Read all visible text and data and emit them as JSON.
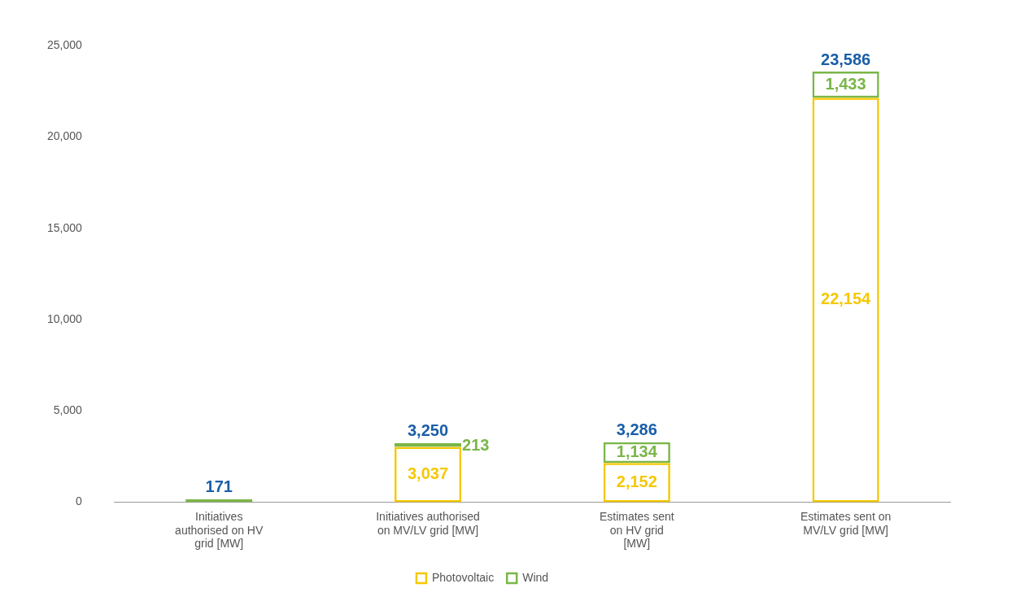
{
  "chart_data": {
    "type": "bar",
    "stacked": true,
    "categories": [
      "Initiatives\nauthorised on HV\ngrid [MW]",
      "Initiatives authorised\non MV/LV grid [MW]",
      "Estimates sent\non HV grid\n[MW]",
      "Estimates sent on\nMV/LV grid [MW]"
    ],
    "series": [
      {
        "name": "Photovoltaic",
        "color": "#f5c800",
        "values": [
          null,
          3037,
          2152,
          22154
        ],
        "value_labels": [
          null,
          "3,037",
          "2,152",
          "22,154"
        ]
      },
      {
        "name": "Wind",
        "color": "#7ab648",
        "values": [
          171,
          213,
          1134,
          1433
        ],
        "value_labels": [
          null,
          "213",
          "1,134",
          "1,433"
        ]
      }
    ],
    "totals": [
      "171",
      "3,250",
      "3,286",
      "23,586"
    ],
    "ylim": [
      0,
      25000
    ],
    "yticks": [
      {
        "value": 0,
        "label": "0"
      },
      {
        "value": 5000,
        "label": "5,000"
      },
      {
        "value": 10000,
        "label": "10,000"
      },
      {
        "value": 15000,
        "label": "15,000"
      },
      {
        "value": 20000,
        "label": "20,000"
      },
      {
        "value": 25000,
        "label": "25,000"
      }
    ],
    "grid": false,
    "legend": "bottom"
  }
}
